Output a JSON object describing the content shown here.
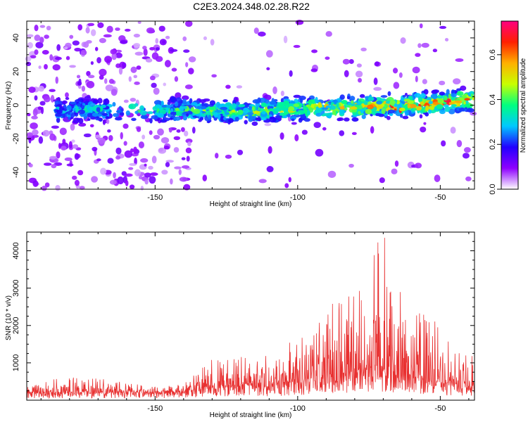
{
  "title": "C2E3.2024.348.02.28.R22",
  "chart_data": [
    {
      "type": "heatmap",
      "xlabel": "Height of straight line (km)",
      "ylabel": "Frequency (Hz)",
      "xlim": [
        -195,
        -38
      ],
      "ylim": [
        -50,
        50
      ],
      "xticks": [
        -150,
        -100,
        -50
      ],
      "yticks": [
        -40,
        -20,
        0,
        20,
        40
      ],
      "xtick_labels": [
        "-150",
        "-100",
        "-50"
      ],
      "ytick_labels": [
        "-40",
        "-20",
        "0",
        "20",
        "40"
      ],
      "colorbar": {
        "label": "Normalized spectral amplitude",
        "range": [
          0,
          0.75
        ],
        "ticks": [
          0,
          0.2,
          0.4,
          0.6
        ],
        "tick_labels": [
          "0.0",
          "0.2",
          "0.4",
          "0.6"
        ],
        "colors": [
          "#ffffff",
          "#8e00ff",
          "#2200ff",
          "#00c8ff",
          "#00ff80",
          "#c8ff00",
          "#ffb000",
          "#ff2000",
          "#ff0080"
        ]
      },
      "ridge": {
        "points": [
          [
            -185,
            -3
          ],
          [
            -170,
            -3
          ],
          [
            -145,
            -3
          ],
          [
            -120,
            -4
          ],
          [
            -100,
            -2
          ],
          [
            -80,
            -1
          ],
          [
            -60,
            0
          ],
          [
            -45,
            2
          ],
          [
            -38,
            3
          ]
        ],
        "peak_amplitude": 0.72
      },
      "noise_region_x": [
        -195,
        -138
      ]
    },
    {
      "type": "line",
      "xlabel": "Height of straight line (km)",
      "ylabel": "SNR (10 * v/v)",
      "xlim": [
        -195,
        -38
      ],
      "ylim": [
        0,
        4500
      ],
      "xticks": [
        -150,
        -100,
        -50
      ],
      "yticks": [
        1000,
        2000,
        3000,
        4000
      ],
      "xtick_labels": [
        "-150",
        "-100",
        "-50"
      ],
      "ytick_labels": [
        "1000",
        "2000",
        "3000",
        "4000"
      ],
      "color": "#e83030",
      "envelope": {
        "x": [
          -195,
          -180,
          -170,
          -150,
          -140,
          -130,
          -120,
          -110,
          -100,
          -90,
          -85,
          -80,
          -75,
          -70,
          -65,
          -60,
          -55,
          -50,
          -45,
          -38
        ],
        "baseline": [
          180,
          180,
          180,
          170,
          200,
          300,
          350,
          350,
          450,
          550,
          600,
          700,
          700,
          700,
          650,
          550,
          500,
          450,
          400,
          350
        ],
        "peak": [
          350,
          700,
          600,
          350,
          450,
          1100,
          1200,
          1200,
          1700,
          2500,
          3200,
          3800,
          3800,
          4500,
          3500,
          2500,
          2300,
          2000,
          1300,
          1200
        ]
      }
    }
  ]
}
